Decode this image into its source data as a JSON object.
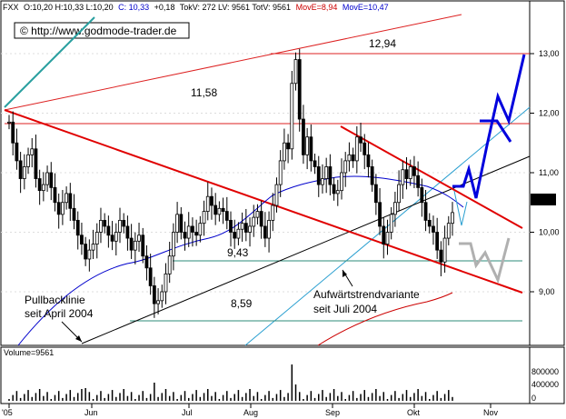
{
  "header": {
    "symbol": "FXX",
    "stats": "O:10,20 H:10,33 L:10,20",
    "close_label": "C: 10,33",
    "change": "+0,18",
    "extra": "TokV: 272 LV: 9561 TotV: 9561",
    "ma1_label": "MovE=8,94",
    "ma2_label": "MovE=10,47"
  },
  "watermark": "© http://www.godmode-trader.de",
  "colors": {
    "bg": "#ffffff",
    "price": "#000000",
    "ma_fast": "#0000cc",
    "ma_slow": "#cc0000",
    "trend_red": "#e00000",
    "forecast": "#0000dd",
    "support": "#2e8b7a",
    "channel_teal": "#2aa0a0"
  },
  "annotations": {
    "level_1294": "12,94",
    "level_1158": "11,58",
    "level_943": "9,43",
    "level_859": "8,59",
    "pullback_line1": "Pullbacklinie",
    "pullback_line2": "seit April 2004",
    "trend_line1": "Aufwärtstrendvariante",
    "trend_line2": "seit Juli 2004"
  },
  "last_price_tag": "10,33",
  "volume": {
    "label": "Volume=9561",
    "ticks": [
      "800000",
      "400000",
      "0"
    ]
  },
  "chart_data": {
    "type": "candlestick",
    "ylim": [
      8.0,
      13.4
    ],
    "y_ticks": [
      "13,00",
      "12,00",
      "11,00",
      "10,00",
      "9,00"
    ],
    "x_ticks": [
      "'05",
      "Jun",
      "Jul",
      "Aug",
      "Sep",
      "Okt",
      "Nov"
    ],
    "horizontal_levels": [
      12.94,
      11.58,
      9.43,
      8.59
    ],
    "series": [
      {
        "name": "MovE=8,94",
        "kind": "moving_average"
      },
      {
        "name": "MovE=10,47",
        "kind": "moving_average"
      }
    ],
    "price": [
      11.85,
      11.5,
      11.2,
      10.9,
      11.1,
      11.3,
      11.4,
      10.9,
      10.7,
      10.8,
      11.0,
      10.75,
      10.5,
      10.3,
      10.5,
      10.65,
      10.4,
      10.2,
      9.95,
      9.8,
      9.55,
      9.7,
      9.8,
      10.0,
      10.2,
      10.1,
      9.95,
      9.85,
      10.0,
      10.2,
      10.1,
      9.9,
      9.7,
      9.85,
      9.95,
      9.6,
      9.4,
      9.1,
      8.8,
      8.85,
      9.0,
      9.3,
      9.6,
      10.0,
      10.3,
      10.0,
      9.9,
      10.1,
      10.0,
      9.95,
      10.15,
      10.35,
      10.6,
      10.45,
      10.3,
      10.4,
      10.35,
      10.2,
      10.0,
      9.9,
      10.05,
      10.15,
      10.0,
      10.1,
      10.25,
      10.35,
      10.1,
      9.9,
      10.2,
      10.45,
      10.8,
      11.2,
      11.5,
      11.4,
      12.5,
      12.9,
      11.9,
      11.3,
      11.6,
      11.2,
      11.1,
      10.8,
      10.9,
      11.1,
      10.8,
      10.65,
      10.7,
      11.0,
      11.2,
      11.3,
      11.2,
      11.6,
      11.5,
      11.3,
      11.1,
      10.8,
      10.5,
      10.1,
      9.8,
      10.0,
      10.3,
      10.5,
      10.8,
      11.05,
      10.9,
      11.1,
      10.95,
      10.75,
      10.5,
      10.2,
      10.1,
      10.0,
      9.7,
      9.5,
      9.9,
      10.15,
      10.33
    ]
  }
}
